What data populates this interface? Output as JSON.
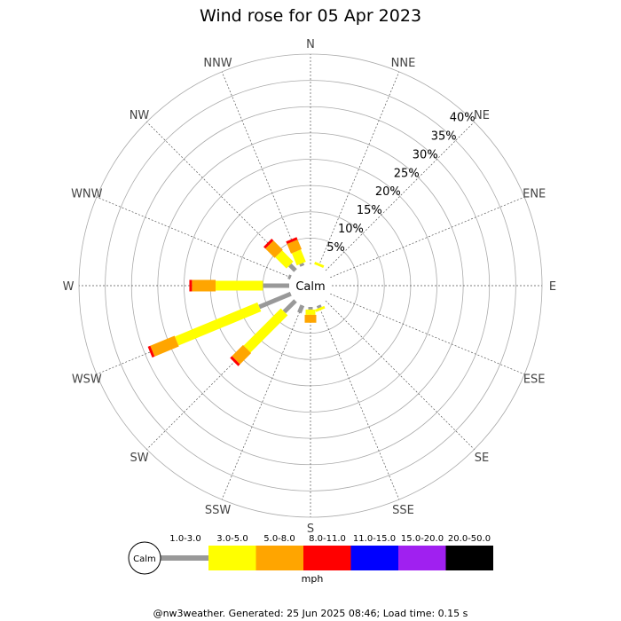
{
  "chart_data": {
    "type": "wind_rose",
    "title": "Wind rose for 05 Apr 2023",
    "center_label": "Calm",
    "directions": [
      "N",
      "NNE",
      "NE",
      "ENE",
      "E",
      "ESE",
      "SE",
      "SSE",
      "S",
      "SSW",
      "SW",
      "WSW",
      "W",
      "WNW",
      "NW",
      "NNW"
    ],
    "radial_ticks": [
      "5%",
      "10%",
      "15%",
      "20%",
      "25%",
      "30%",
      "35%",
      "40%"
    ],
    "radial_max": 40,
    "speed_bins": [
      {
        "label": "1.0-3.0",
        "color": "#999999"
      },
      {
        "label": "3.0-5.0",
        "color": "#ffff00"
      },
      {
        "label": "5.0-8.0",
        "color": "#ffa500"
      },
      {
        "label": "8.0-11.0",
        "color": "#ff0000"
      },
      {
        "label": "11.0-15.0",
        "color": "#0000ff"
      },
      {
        "label": "15.0-20.0",
        "color": "#a020f0"
      },
      {
        "label": "20.0-50.0",
        "color": "#000000"
      }
    ],
    "units": "mph",
    "values": [
      {
        "direction": "N",
        "cumulative": [
          0.0,
          0.0,
          0.0,
          0.0
        ]
      },
      {
        "direction": "NNE",
        "cumulative": [
          0.0,
          0.5,
          0.5,
          0.5
        ]
      },
      {
        "direction": "NE",
        "cumulative": [
          0.0,
          0.0,
          0.0,
          0.0
        ]
      },
      {
        "direction": "ENE",
        "cumulative": [
          0.0,
          0.0,
          0.0,
          0.0
        ]
      },
      {
        "direction": "E",
        "cumulative": [
          0.0,
          0.0,
          0.0,
          0.0
        ]
      },
      {
        "direction": "ESE",
        "cumulative": [
          0.0,
          0.0,
          0.0,
          0.0
        ]
      },
      {
        "direction": "SE",
        "cumulative": [
          0.0,
          0.0,
          0.0,
          0.0
        ]
      },
      {
        "direction": "SSE",
        "cumulative": [
          0.5,
          1.0,
          1.0,
          1.0
        ]
      },
      {
        "direction": "S",
        "cumulative": [
          0.5,
          1.5,
          3.0,
          3.0
        ]
      },
      {
        "direction": "SSW",
        "cumulative": [
          1.5,
          1.5,
          1.5,
          1.5
        ]
      },
      {
        "direction": "SW",
        "cumulative": [
          3.0,
          13.0,
          16.0,
          16.5
        ]
      },
      {
        "direction": "WSW",
        "cumulative": [
          6.5,
          23.5,
          28.5,
          29.0
        ]
      },
      {
        "direction": "W",
        "cumulative": [
          5.0,
          14.0,
          18.5,
          19.0
        ]
      },
      {
        "direction": "WNW",
        "cumulative": [
          0.5,
          0.5,
          0.5,
          0.5
        ]
      },
      {
        "direction": "NW",
        "cumulative": [
          1.5,
          4.5,
          7.0,
          7.5
        ]
      },
      {
        "direction": "NNW",
        "cumulative": [
          0.5,
          3.0,
          5.0,
          5.5
        ]
      }
    ]
  },
  "footer": {
    "text": "@nw3weather. Generated: 25 Jun 2025 08:46; Load time: 0.15 s"
  }
}
